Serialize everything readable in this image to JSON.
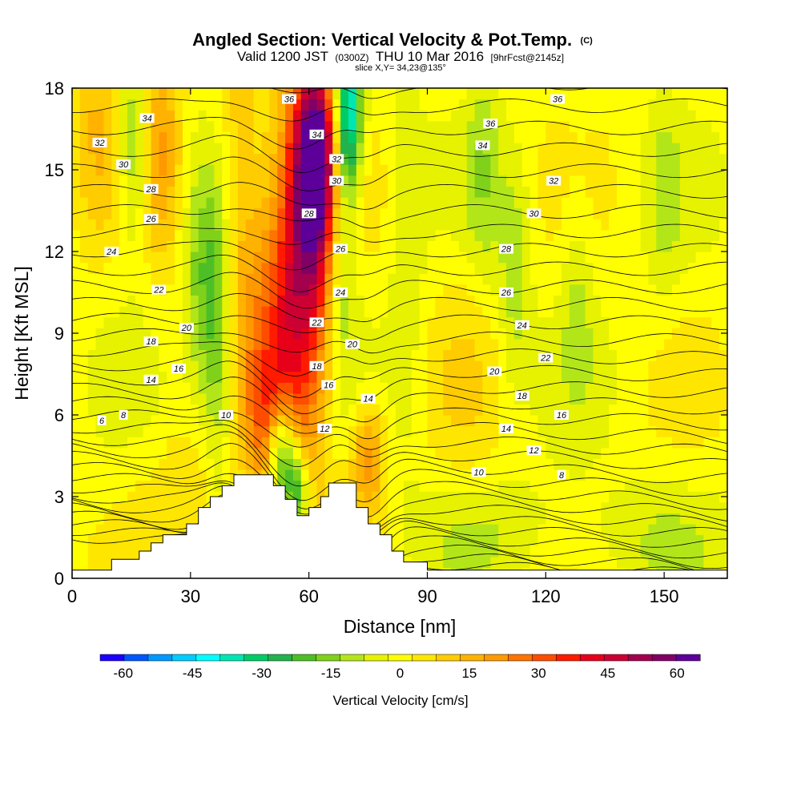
{
  "chart_data": {
    "type": "heatmap",
    "title": "Angled Section: Vertical Velocity & Pot.Temp.",
    "title_unit": "(C)",
    "subtitle_parts": [
      "Valid 1200 JST",
      "(0300Z)",
      "THU 10 Mar 2016",
      "[9hrFcst@2145z]"
    ],
    "slice_text": "slice X,Y= 34,23@135°",
    "xlabel": "Distance [nm]",
    "ylabel": "Height [Kft MSL]",
    "xlim": [
      0,
      166
    ],
    "ylim": [
      0,
      18
    ],
    "x_ticks": [
      0,
      30,
      60,
      90,
      120,
      150
    ],
    "y_ticks": [
      0,
      3,
      6,
      9,
      12,
      15,
      18
    ],
    "colorbar": {
      "label": "Vertical Velocity [cm/s]",
      "ticks": [
        -60,
        -45,
        -30,
        -15,
        0,
        15,
        30,
        45,
        60
      ],
      "range": [
        -65,
        65
      ],
      "colors": [
        "#1a00ff",
        "#0055ff",
        "#0099ff",
        "#00ccff",
        "#00ffff",
        "#00e6b3",
        "#00cc66",
        "#22b34d",
        "#4dbf26",
        "#80d11a",
        "#b3e619",
        "#e6f200",
        "#ffff00",
        "#ffe600",
        "#ffcc00",
        "#ffb300",
        "#ff9900",
        "#ff7300",
        "#ff4d00",
        "#ff1a00",
        "#e6001a",
        "#cc0033",
        "#a3004d",
        "#800066",
        "#5c0099"
      ]
    },
    "terrain": [
      [
        0,
        0.3
      ],
      [
        10,
        0.3
      ],
      [
        10,
        0.7
      ],
      [
        17,
        0.7
      ],
      [
        17,
        1.0
      ],
      [
        20,
        1.0
      ],
      [
        20,
        1.3
      ],
      [
        23,
        1.3
      ],
      [
        23,
        1.6
      ],
      [
        29,
        1.6
      ],
      [
        29,
        2.0
      ],
      [
        32,
        2.0
      ],
      [
        32,
        2.6
      ],
      [
        35,
        2.6
      ],
      [
        35,
        3.0
      ],
      [
        38,
        3.0
      ],
      [
        38,
        3.4
      ],
      [
        41,
        3.4
      ],
      [
        41,
        3.8
      ],
      [
        51,
        3.8
      ],
      [
        51,
        3.4
      ],
      [
        54,
        3.4
      ],
      [
        54,
        2.9
      ],
      [
        57,
        2.9
      ],
      [
        57,
        2.3
      ],
      [
        60,
        2.3
      ],
      [
        60,
        2.6
      ],
      [
        63,
        2.6
      ],
      [
        63,
        3.0
      ],
      [
        65,
        3.0
      ],
      [
        65,
        3.5
      ],
      [
        72,
        3.5
      ],
      [
        72,
        2.6
      ],
      [
        75,
        2.6
      ],
      [
        75,
        2.0
      ],
      [
        78,
        2.0
      ],
      [
        78,
        1.6
      ],
      [
        81,
        1.6
      ],
      [
        81,
        1.0
      ],
      [
        84,
        1.0
      ],
      [
        84,
        0.6
      ],
      [
        90,
        0.6
      ],
      [
        90,
        0.3
      ],
      [
        166,
        0.3
      ]
    ],
    "vertical_velocity_features": [
      {
        "x": 62,
        "y": 15.5,
        "sx": 4,
        "sy": 2.5,
        "w": 55
      },
      {
        "x": 60,
        "y": 12.5,
        "sx": 6,
        "sy": 5,
        "w": 30
      },
      {
        "x": 54,
        "y": 9,
        "sx": 7,
        "sy": 4,
        "w": 25
      },
      {
        "x": 50,
        "y": 5.5,
        "sx": 4,
        "sy": 2,
        "w": 18
      },
      {
        "x": 70,
        "y": 17,
        "sx": 2.5,
        "sy": 2,
        "w": -40
      },
      {
        "x": 68,
        "y": 13,
        "sx": 3,
        "sy": 4,
        "w": -25
      },
      {
        "x": 53,
        "y": 4.6,
        "sx": 2.5,
        "sy": 1.4,
        "w": -42
      },
      {
        "x": 57,
        "y": 3.3,
        "sx": 2,
        "sy": 1,
        "w": -30
      },
      {
        "x": 37,
        "y": 9,
        "sx": 3,
        "sy": 4,
        "w": -22
      },
      {
        "x": 16,
        "y": 15.5,
        "sx": 3,
        "sy": 2.5,
        "w": -20
      },
      {
        "x": 32,
        "y": 11,
        "sx": 3,
        "sy": 3,
        "w": -12
      },
      {
        "x": 75,
        "y": 4.5,
        "sx": 3,
        "sy": 1.5,
        "w": 22
      },
      {
        "x": 22,
        "y": 16,
        "sx": 4,
        "sy": 3,
        "w": 18
      },
      {
        "x": 42,
        "y": 14,
        "sx": 4,
        "sy": 4,
        "w": 15
      },
      {
        "x": 6,
        "y": 17,
        "sx": 4,
        "sy": 3,
        "w": 12
      },
      {
        "x": 85,
        "y": 12,
        "sx": 3,
        "sy": 5,
        "w": -8
      },
      {
        "x": 104,
        "y": 15,
        "sx": 3,
        "sy": 3,
        "w": -10
      },
      {
        "x": 112,
        "y": 11,
        "sx": 3,
        "sy": 3,
        "w": -12
      },
      {
        "x": 128,
        "y": 11,
        "sx": 3,
        "sy": 3,
        "w": -8
      },
      {
        "x": 150,
        "y": 14,
        "sx": 3,
        "sy": 3,
        "w": -7
      },
      {
        "x": 105,
        "y": 1.8,
        "sx": 15,
        "sy": 1.5,
        "w": -6
      },
      {
        "x": 145,
        "y": 1.5,
        "sx": 15,
        "sy": 1.5,
        "w": -6
      },
      {
        "x": 100,
        "y": 7.5,
        "sx": 8,
        "sy": 4,
        "w": 4
      },
      {
        "x": 30,
        "y": 3,
        "sx": 8,
        "sy": 2,
        "w": 8
      }
    ],
    "theta_contours": {
      "min": 4,
      "max": 39,
      "step": 1
    },
    "contour_labels": [
      {
        "x": 7.5,
        "y": 5.8,
        "text": "6"
      },
      {
        "x": 13,
        "y": 6.0,
        "text": "8"
      },
      {
        "x": 39,
        "y": 6.0,
        "text": "10"
      },
      {
        "x": 64,
        "y": 5.5,
        "text": "12"
      },
      {
        "x": 20,
        "y": 7.3,
        "text": "14"
      },
      {
        "x": 27,
        "y": 7.7,
        "text": "16"
      },
      {
        "x": 20,
        "y": 8.7,
        "text": "18"
      },
      {
        "x": 29,
        "y": 9.2,
        "text": "20"
      },
      {
        "x": 22,
        "y": 10.6,
        "text": "22"
      },
      {
        "x": 10,
        "y": 12.0,
        "text": "24"
      },
      {
        "x": 20,
        "y": 13.2,
        "text": "26"
      },
      {
        "x": 20,
        "y": 14.3,
        "text": "28"
      },
      {
        "x": 13,
        "y": 15.2,
        "text": "30"
      },
      {
        "x": 7,
        "y": 16.0,
        "text": "32"
      },
      {
        "x": 19,
        "y": 16.9,
        "text": "34"
      },
      {
        "x": 55,
        "y": 17.6,
        "text": "36"
      },
      {
        "x": 62,
        "y": 16.3,
        "text": "34"
      },
      {
        "x": 67,
        "y": 15.4,
        "text": "32"
      },
      {
        "x": 67,
        "y": 14.6,
        "text": "30"
      },
      {
        "x": 60,
        "y": 13.4,
        "text": "28"
      },
      {
        "x": 68,
        "y": 12.1,
        "text": "26"
      },
      {
        "x": 68,
        "y": 10.5,
        "text": "24"
      },
      {
        "x": 62,
        "y": 9.4,
        "text": "22"
      },
      {
        "x": 71,
        "y": 8.6,
        "text": "20"
      },
      {
        "x": 62,
        "y": 7.8,
        "text": "18"
      },
      {
        "x": 65,
        "y": 7.1,
        "text": "16"
      },
      {
        "x": 75,
        "y": 6.6,
        "text": "14"
      },
      {
        "x": 123,
        "y": 17.6,
        "text": "36"
      },
      {
        "x": 106,
        "y": 16.7,
        "text": "36"
      },
      {
        "x": 104,
        "y": 15.9,
        "text": "34"
      },
      {
        "x": 122,
        "y": 14.6,
        "text": "32"
      },
      {
        "x": 117,
        "y": 13.4,
        "text": "30"
      },
      {
        "x": 110,
        "y": 12.1,
        "text": "28"
      },
      {
        "x": 110,
        "y": 10.5,
        "text": "26"
      },
      {
        "x": 114,
        "y": 9.3,
        "text": "24"
      },
      {
        "x": 120,
        "y": 8.1,
        "text": "22"
      },
      {
        "x": 107,
        "y": 7.6,
        "text": "20"
      },
      {
        "x": 114,
        "y": 6.7,
        "text": "18"
      },
      {
        "x": 124,
        "y": 6.0,
        "text": "16"
      },
      {
        "x": 110,
        "y": 5.5,
        "text": "14"
      },
      {
        "x": 117,
        "y": 4.7,
        "text": "12"
      },
      {
        "x": 103,
        "y": 3.9,
        "text": "10"
      },
      {
        "x": 124,
        "y": 3.8,
        "text": "8"
      }
    ]
  }
}
